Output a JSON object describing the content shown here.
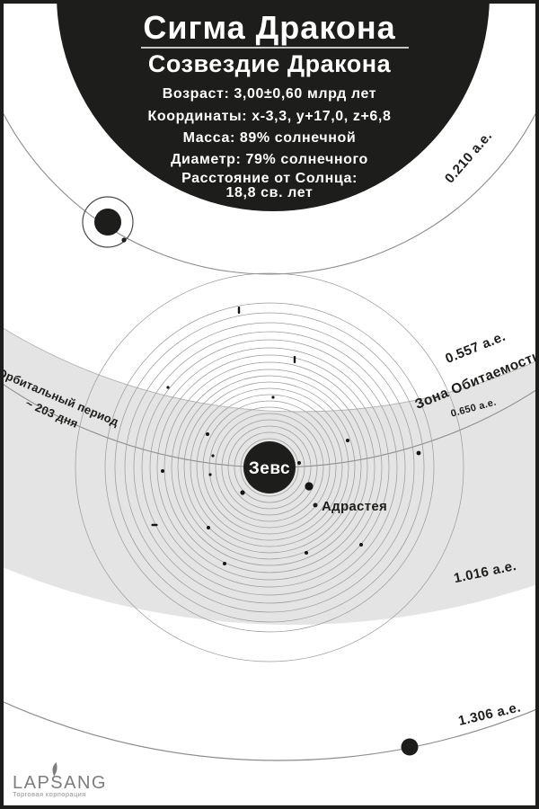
{
  "header": {
    "title": "Сигма Дракона",
    "subtitle": "Созвездие Дракона",
    "stats": [
      "Возраст: 3,00±0,60 млрд лет",
      "Координаты: x-3,3, y+17,0, z+6,8",
      "Масса: 89% солнечной",
      "Диаметр: 79% солнечного",
      "Расстояние от Солнца:",
      "18,8 св. лет"
    ]
  },
  "orbits": {
    "r0210": "0.210 а.е.",
    "r0557": "0.557 а.е.",
    "r0650": "0.650 а.е.",
    "r1016": "1.016 а.е.",
    "r1306": "1.306 а.е."
  },
  "zone": {
    "label": "Зона Обитаемости"
  },
  "period": {
    "line1": "Орбитальный период",
    "line2": "~ 203 дня"
  },
  "planet": {
    "name": "Зевс"
  },
  "moon": {
    "name": "Адрастея"
  },
  "footer": {
    "brand": "LAPSANG",
    "tagline": "Торговая корпорация"
  },
  "colors": {
    "ink": "#1d1d1b",
    "band": "#e4e4e4",
    "orbit_line": "#8c8c8c",
    "ring_line": "#9c9c9c",
    "brand_gray": "#7d7d7d"
  }
}
